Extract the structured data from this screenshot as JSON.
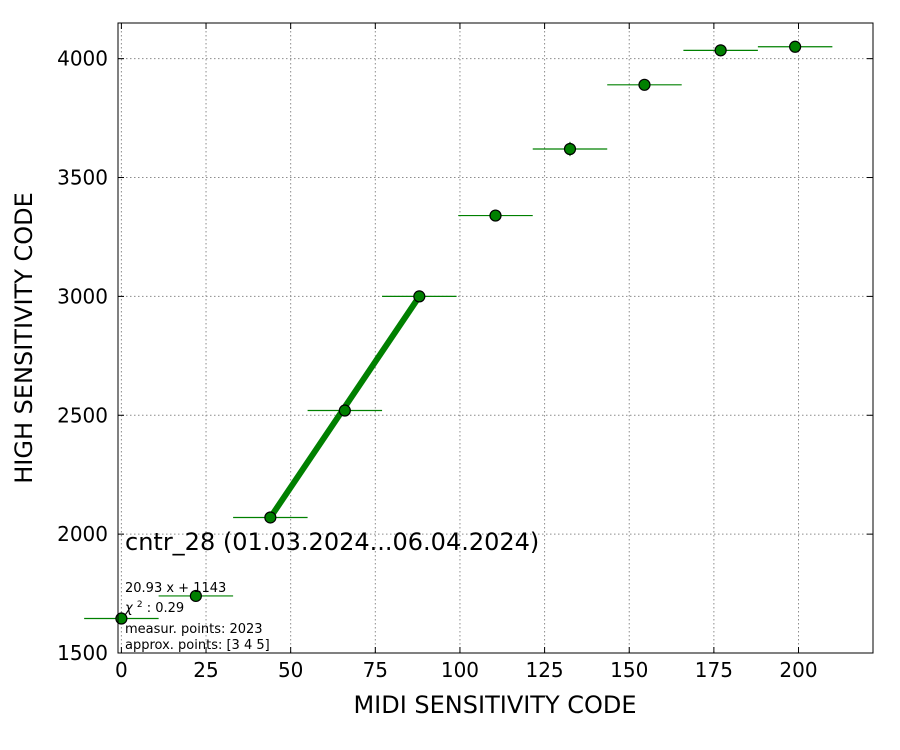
{
  "chart_data": {
    "type": "scatter",
    "title": "",
    "xlabel": "MIDI SENSITIVITY CODE",
    "ylabel": "HIGH SENSITIVITY CODE",
    "xlim": [
      -1,
      222
    ],
    "ylim": [
      1500,
      4150
    ],
    "xticks": [
      0,
      25,
      50,
      75,
      100,
      125,
      150,
      175,
      200
    ],
    "yticks": [
      1500,
      2000,
      2500,
      3000,
      3500,
      4000
    ],
    "grid": true,
    "series": [
      {
        "x": [
          0,
          22,
          44,
          66,
          88,
          110.5,
          132.5,
          154.5,
          177,
          199
        ],
        "y": [
          1645,
          1740,
          2070,
          2520,
          3000,
          3340,
          3620,
          3890,
          4035,
          4050
        ],
        "xerr": [
          11,
          11,
          11,
          11,
          11,
          11,
          11,
          11,
          11,
          11
        ],
        "yerr": [
          0,
          0,
          0,
          0,
          0,
          12,
          30,
          0,
          0,
          0
        ],
        "color": "#008000",
        "marker": "circle",
        "marker_edge_color": "#000000"
      }
    ],
    "fit_line": {
      "x": [
        44,
        88
      ],
      "y": [
        2070,
        3000
      ],
      "color": "#008000"
    },
    "annotations": {
      "main": "cntr_28 (01.03.2024...06.04.2024)",
      "fit_equation": "20.93 x + 1143",
      "chi2_symbol": "χ",
      "chi2_power": "2",
      "chi2_value": ": 0.29",
      "measur_points": "measur. points: 2023",
      "approx_points": "approx. points: [3 4 5]"
    }
  }
}
